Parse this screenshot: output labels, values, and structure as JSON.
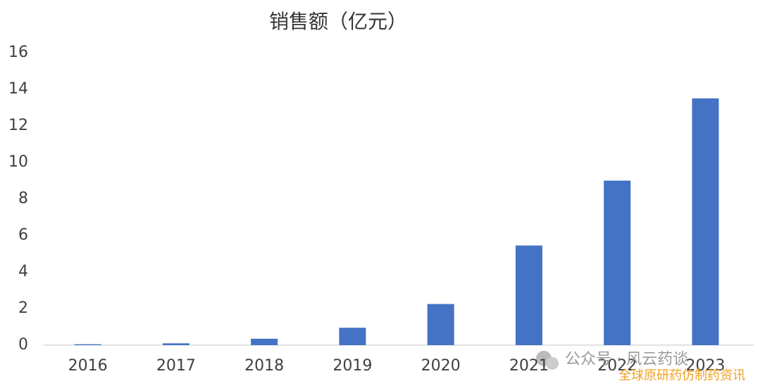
{
  "chart_data": {
    "type": "bar",
    "title": "销售额（亿元）",
    "categories": [
      "2016",
      "2017",
      "2018",
      "2019",
      "2020",
      "2021",
      "2022",
      "2023"
    ],
    "values": [
      0.05,
      0.1,
      0.35,
      0.95,
      2.25,
      5.45,
      9.0,
      13.5
    ],
    "color": "#4472c4",
    "ylim": [
      0,
      16
    ],
    "yticks": [
      0,
      2,
      4,
      6,
      8,
      10,
      12,
      14,
      16
    ],
    "grid": false,
    "annotations": [
      "公众号 · 风云药谈",
      "全球原研药仿制药资讯"
    ]
  }
}
